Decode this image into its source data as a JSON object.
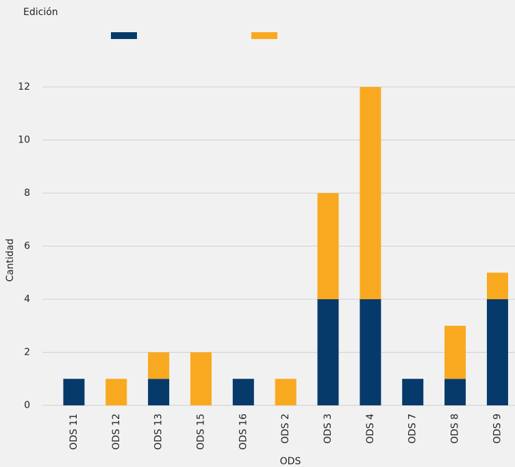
{
  "chart_data": {
    "type": "stacked_bar",
    "legend_title": "Edición",
    "x_label": "ODS",
    "y_label": "Cantidad",
    "categories": [
      "ODS 11",
      "ODS 12",
      "ODS 13",
      "ODS 15",
      "ODS 16",
      "ODS 2",
      "ODS 3",
      "ODS 4",
      "ODS 7",
      "ODS 8",
      "ODS 9"
    ],
    "series": [
      {
        "color": "#063a6b",
        "values": [
          1,
          0,
          1,
          0,
          1,
          0,
          4,
          4,
          1,
          1,
          4
        ]
      },
      {
        "color": "#f9a91f",
        "values": [
          0,
          1,
          1,
          2,
          0,
          1,
          4,
          8,
          0,
          2,
          1
        ]
      }
    ],
    "ylim": [
      0,
      12
    ],
    "yticks": [
      0,
      2,
      4,
      6,
      8,
      10,
      12
    ],
    "grid": true
  }
}
